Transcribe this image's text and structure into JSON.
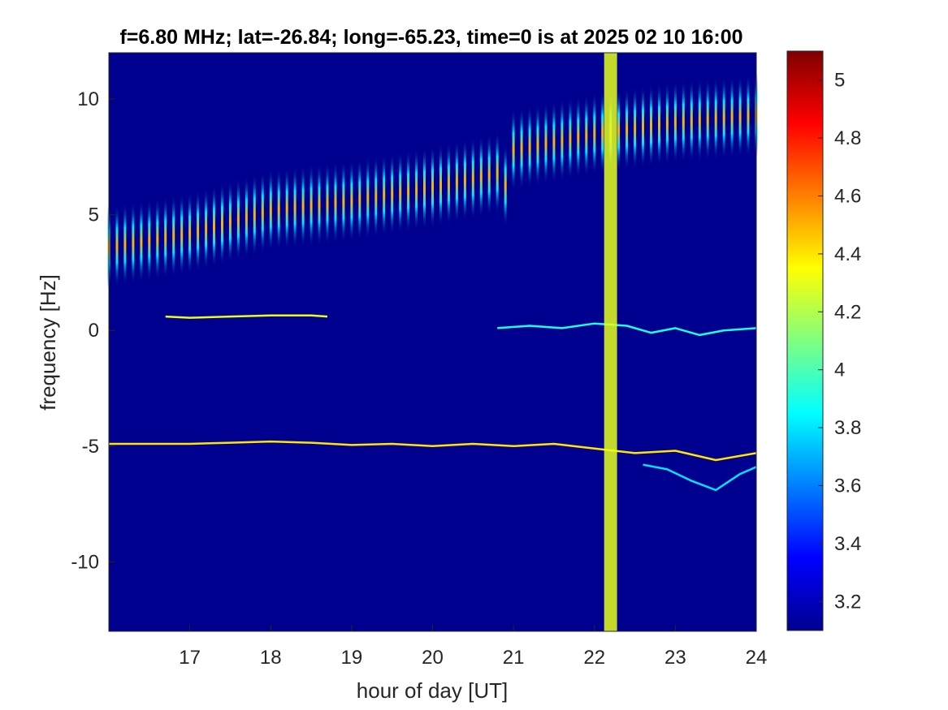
{
  "chart_data": {
    "type": "heatmap",
    "title": "f=6.80 MHz;  lat=-26.84; long=-65.23, time=0 is at 2025 02 10 16:00",
    "xlabel": "hour of day [UT]",
    "ylabel": "frequency [Hz]",
    "xlim": [
      16.0,
      24.0
    ],
    "ylim": [
      -13.0,
      12.0
    ],
    "xticks": [
      17,
      18,
      19,
      20,
      21,
      22,
      23,
      24
    ],
    "yticks": [
      -10,
      -5,
      0,
      5,
      10
    ],
    "colorbar": {
      "colormap": "jet",
      "range": [
        3.1,
        5.1
      ],
      "ticks": [
        3.2,
        3.4,
        3.6,
        3.8,
        4,
        4.2,
        4.4,
        4.6,
        4.8,
        5
      ]
    },
    "background_level": 3.1,
    "series": [
      {
        "name": "",
        "kind": "periodic-streaks",
        "hour_range": [
          16.0,
          24.0
        ],
        "period_h": 0.1,
        "center_freq": [
          [
            16.0,
            3.6
          ],
          [
            17.0,
            4.2
          ],
          [
            18.0,
            5.2
          ],
          [
            19.0,
            5.6
          ],
          [
            20.0,
            6.2
          ],
          [
            20.8,
            6.8
          ],
          [
            20.85,
            5.5
          ],
          [
            21.0,
            7.8
          ],
          [
            22.0,
            8.5
          ],
          [
            23.0,
            9.0
          ],
          [
            24.0,
            9.3
          ]
        ],
        "half_length_hz": 1.8,
        "level": 4.5
      },
      {
        "name": "",
        "kind": "line",
        "x": [
          16.7,
          17.0,
          17.5,
          18.0,
          18.5,
          18.7
        ],
        "y": [
          0.6,
          0.55,
          0.6,
          0.65,
          0.65,
          0.6
        ],
        "level": 4.3
      },
      {
        "name": "",
        "kind": "line",
        "x": [
          20.8,
          21.2,
          21.6,
          22.0,
          22.4,
          22.7,
          23.0,
          23.3,
          23.6,
          24.0
        ],
        "y": [
          0.1,
          0.2,
          0.1,
          0.3,
          0.2,
          -0.1,
          0.1,
          -0.2,
          0.0,
          0.1
        ],
        "level": 3.9
      },
      {
        "name": "",
        "kind": "line",
        "x": [
          16.0,
          16.5,
          17.0,
          17.5,
          18.0,
          18.5,
          19.0,
          19.5,
          20.0,
          20.5,
          21.0,
          21.5,
          22.0,
          22.5,
          23.0,
          23.5,
          24.0
        ],
        "y": [
          -4.9,
          -4.9,
          -4.9,
          -4.85,
          -4.8,
          -4.85,
          -4.95,
          -4.9,
          -5.0,
          -4.9,
          -5.0,
          -4.9,
          -5.1,
          -5.3,
          -5.2,
          -5.6,
          -5.3
        ],
        "level": 4.4
      },
      {
        "name": "",
        "kind": "line",
        "x": [
          22.6,
          22.9,
          23.2,
          23.5,
          23.8,
          24.0
        ],
        "y": [
          -5.8,
          -6.0,
          -6.5,
          -6.9,
          -6.2,
          -5.9
        ],
        "level": 3.8
      },
      {
        "name": "",
        "kind": "broadband-band",
        "x_range": [
          22.12,
          22.28
        ],
        "level": 4.3
      }
    ]
  }
}
